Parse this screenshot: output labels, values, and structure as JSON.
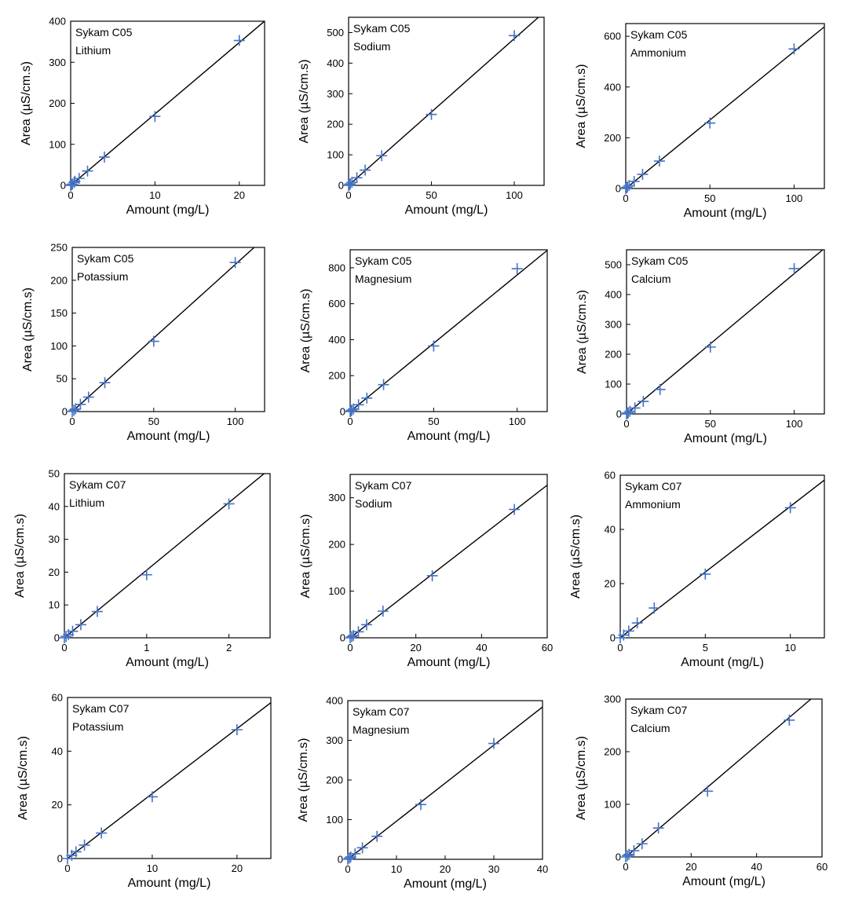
{
  "chart_data": [
    {
      "type": "scatter",
      "legend": [
        "Sykam C05",
        "Lithium"
      ],
      "xlabel": "Amount (mg/L)",
      "ylabel": "Area (µS/cm.s)",
      "xlim": [
        0,
        23
      ],
      "ylim": [
        0,
        400
      ],
      "xticks": [
        0,
        10,
        20
      ],
      "yticks": [
        0,
        100,
        200,
        300,
        400
      ],
      "fit_slope": 17.4,
      "points": [
        [
          0,
          0
        ],
        [
          0.1,
          1.5
        ],
        [
          0.2,
          3
        ],
        [
          0.4,
          7
        ],
        [
          0.5,
          10
        ],
        [
          1,
          17
        ],
        [
          2,
          35
        ],
        [
          4,
          69
        ],
        [
          10,
          168
        ],
        [
          20,
          353
        ]
      ]
    },
    {
      "type": "scatter",
      "legend": [
        "Sykam C05",
        "Sodium"
      ],
      "xlabel": "Amount (mg/L)",
      "ylabel": "Area (µS/cm.s)",
      "xlim": [
        0,
        118
      ],
      "ylim": [
        0,
        550
      ],
      "xticks": [
        0,
        50,
        100
      ],
      "yticks": [
        0,
        100,
        200,
        300,
        400,
        500
      ],
      "fit_slope": 4.8,
      "points": [
        [
          0,
          0
        ],
        [
          0.5,
          2
        ],
        [
          1,
          5
        ],
        [
          2,
          10
        ],
        [
          5,
          25
        ],
        [
          10,
          50
        ],
        [
          20,
          97
        ],
        [
          50,
          232
        ],
        [
          100,
          490
        ]
      ]
    },
    {
      "type": "scatter",
      "legend": [
        "Sykam C05",
        "Ammonium"
      ],
      "xlabel": "Amount (mg/L)",
      "ylabel": "Area (µS/cm.s)",
      "xlim": [
        0,
        118
      ],
      "ylim": [
        0,
        650
      ],
      "xticks": [
        0,
        50,
        100
      ],
      "yticks": [
        0,
        200,
        400,
        600
      ],
      "fit_slope": 5.4,
      "points": [
        [
          0,
          0
        ],
        [
          0.5,
          3
        ],
        [
          1,
          6
        ],
        [
          2,
          12
        ],
        [
          5,
          28
        ],
        [
          10,
          56
        ],
        [
          20,
          108
        ],
        [
          50,
          258
        ],
        [
          100,
          550
        ]
      ]
    },
    {
      "type": "scatter",
      "legend": [
        "Sykam C05",
        "Potassium"
      ],
      "xlabel": "Amount (mg/L)",
      "ylabel": "Area (µS/cm.s)",
      "xlim": [
        0,
        118
      ],
      "ylim": [
        0,
        250
      ],
      "xticks": [
        0,
        50,
        100
      ],
      "yticks": [
        0,
        50,
        100,
        150,
        200,
        250
      ],
      "fit_slope": 2.24,
      "points": [
        [
          0,
          0
        ],
        [
          1,
          2
        ],
        [
          2,
          4
        ],
        [
          5,
          11
        ],
        [
          10,
          22
        ],
        [
          20,
          44
        ],
        [
          50,
          107
        ],
        [
          100,
          227
        ]
      ]
    },
    {
      "type": "scatter",
      "legend": [
        "Sykam C05",
        "Magnesium"
      ],
      "xlabel": "Amount (mg/L)",
      "ylabel": "Area (µS/cm.s)",
      "xlim": [
        0,
        118
      ],
      "ylim": [
        0,
        900
      ],
      "xticks": [
        0,
        50,
        100
      ],
      "yticks": [
        0,
        200,
        400,
        600,
        800
      ],
      "fit_slope": 7.6,
      "points": [
        [
          0,
          0
        ],
        [
          0.5,
          4
        ],
        [
          1,
          8
        ],
        [
          2,
          15
        ],
        [
          5,
          38
        ],
        [
          10,
          75
        ],
        [
          20,
          150
        ],
        [
          50,
          365
        ],
        [
          100,
          795
        ]
      ]
    },
    {
      "type": "scatter",
      "legend": [
        "Sykam C05",
        "Calcium"
      ],
      "xlabel": "Amount (mg/L)",
      "ylabel": "Area (µS/cm.s)",
      "xlim": [
        0,
        118
      ],
      "ylim": [
        0,
        550
      ],
      "xticks": [
        0,
        50,
        100
      ],
      "yticks": [
        0,
        100,
        200,
        300,
        400,
        500
      ],
      "fit_slope": 4.7,
      "points": [
        [
          0,
          0
        ],
        [
          0.5,
          2
        ],
        [
          1,
          4
        ],
        [
          2,
          9
        ],
        [
          5,
          20
        ],
        [
          10,
          42
        ],
        [
          20,
          82
        ],
        [
          50,
          224
        ],
        [
          100,
          487
        ]
      ]
    },
    {
      "type": "scatter",
      "legend": [
        "Sykam C07",
        "Lithium"
      ],
      "xlabel": "Amount (mg/L)",
      "ylabel": "Area (µS/cm.s)",
      "xlim": [
        0,
        2.5
      ],
      "ylim": [
        0,
        50
      ],
      "xticks": [
        0,
        1,
        2
      ],
      "yticks": [
        0,
        10,
        20,
        30,
        40,
        50
      ],
      "fit_slope": 20.6,
      "points": [
        [
          0,
          0
        ],
        [
          0.02,
          0.4
        ],
        [
          0.05,
          1
        ],
        [
          0.1,
          2
        ],
        [
          0.2,
          4
        ],
        [
          0.4,
          8
        ],
        [
          1,
          19.2
        ],
        [
          2,
          40.8
        ]
      ]
    },
    {
      "type": "scatter",
      "legend": [
        "Sykam C07",
        "Sodium"
      ],
      "xlabel": "Amount (mg/L)",
      "ylabel": "Area (µS/cm.s)",
      "xlim": [
        0,
        60
      ],
      "ylim": [
        0,
        350
      ],
      "xticks": [
        0,
        20,
        40,
        60
      ],
      "yticks": [
        0,
        100,
        200,
        300
      ],
      "fit_slope": 5.45,
      "points": [
        [
          0,
          0
        ],
        [
          0.5,
          2.5
        ],
        [
          1,
          5
        ],
        [
          2.5,
          13
        ],
        [
          5,
          28
        ],
        [
          10,
          57
        ],
        [
          25,
          133
        ],
        [
          50,
          275
        ]
      ]
    },
    {
      "type": "scatter",
      "legend": [
        "Sykam C07",
        "Ammonium"
      ],
      "xlabel": "Amount (mg/L)",
      "ylabel": "Area (µS/cm.s)",
      "xlim": [
        0,
        12
      ],
      "ylim": [
        0,
        60
      ],
      "xticks": [
        0,
        5,
        10
      ],
      "yticks": [
        0,
        20,
        40,
        60
      ],
      "fit_slope": 4.85,
      "points": [
        [
          0,
          0
        ],
        [
          0.2,
          1
        ],
        [
          0.5,
          2.5
        ],
        [
          1,
          5.5
        ],
        [
          2,
          11
        ],
        [
          5,
          23.5
        ],
        [
          10,
          48
        ]
      ]
    },
    {
      "type": "scatter",
      "legend": [
        "Sykam C07",
        "Potassium"
      ],
      "xlabel": "Amount (mg/L)",
      "ylabel": "Area (µS/cm.s)",
      "xlim": [
        0,
        24
      ],
      "ylim": [
        0,
        60
      ],
      "xticks": [
        0,
        10,
        20
      ],
      "yticks": [
        0,
        20,
        40,
        60
      ],
      "fit_slope": 2.42,
      "points": [
        [
          0,
          0
        ],
        [
          0.5,
          1.2
        ],
        [
          1,
          2.5
        ],
        [
          2,
          5
        ],
        [
          4,
          9.5
        ],
        [
          10,
          23
        ],
        [
          20,
          48
        ]
      ]
    },
    {
      "type": "scatter",
      "legend": [
        "Sykam C07",
        "Magnesium"
      ],
      "xlabel": "Amount (mg/L)",
      "ylabel": "Area (µS/cm.s)",
      "xlim": [
        0,
        40
      ],
      "ylim": [
        0,
        400
      ],
      "xticks": [
        0,
        10,
        20,
        30,
        40
      ],
      "yticks": [
        0,
        100,
        200,
        300,
        400
      ],
      "fit_slope": 9.6,
      "points": [
        [
          0,
          0
        ],
        [
          0.3,
          3
        ],
        [
          0.6,
          6
        ],
        [
          1.5,
          14
        ],
        [
          3,
          29
        ],
        [
          6,
          58
        ],
        [
          15,
          138
        ],
        [
          30,
          292
        ]
      ]
    },
    {
      "type": "scatter",
      "legend": [
        "Sykam C07",
        "Calcium"
      ],
      "xlabel": "Amount (mg/L)",
      "ylabel": "Area (µS/cm.s)",
      "xlim": [
        0,
        60
      ],
      "ylim": [
        0,
        300
      ],
      "xticks": [
        0,
        20,
        40,
        60
      ],
      "yticks": [
        0,
        100,
        200,
        300
      ],
      "fit_slope": 5.3,
      "points": [
        [
          0,
          0
        ],
        [
          0.5,
          2.5
        ],
        [
          1,
          5
        ],
        [
          2.5,
          12
        ],
        [
          5,
          25
        ],
        [
          10,
          55
        ],
        [
          25,
          125
        ],
        [
          50,
          260
        ]
      ]
    }
  ],
  "colors": {
    "marker": "#4472c4",
    "fit_line": "#000000",
    "frame": "#000000"
  }
}
